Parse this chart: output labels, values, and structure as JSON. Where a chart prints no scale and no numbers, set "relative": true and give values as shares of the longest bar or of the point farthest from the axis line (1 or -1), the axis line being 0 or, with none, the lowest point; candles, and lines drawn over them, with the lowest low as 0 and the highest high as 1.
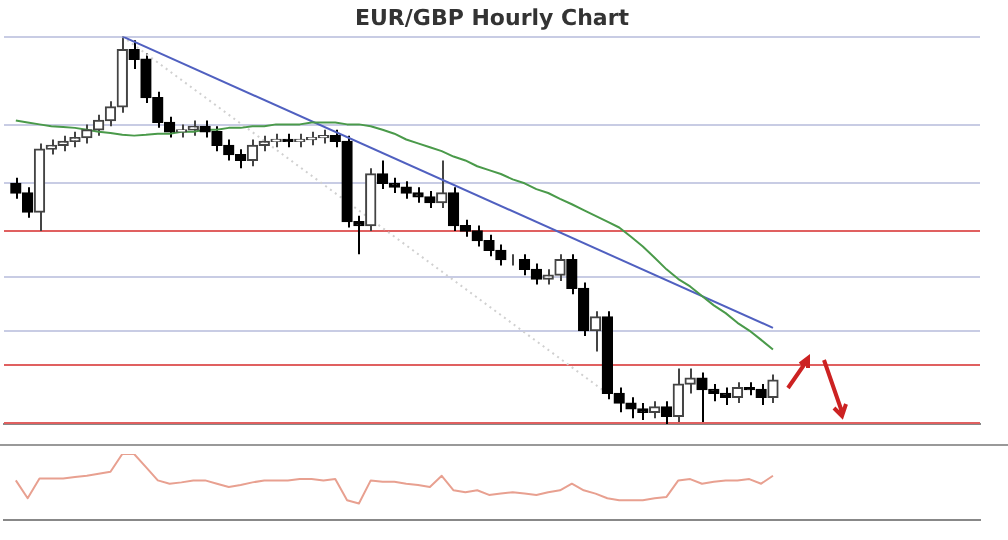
{
  "chart_data": [
    {
      "type": "candlestick",
      "title": "EUR/GBP Hourly Chart",
      "relative": true,
      "legend": false,
      "grid": false,
      "categories": [
        null,
        null,
        null,
        null,
        null,
        null,
        null,
        null,
        null,
        null,
        null,
        null,
        null,
        null,
        null,
        null,
        null,
        null,
        null,
        null,
        null,
        null,
        null,
        null,
        null,
        null,
        null,
        null,
        null,
        null,
        null,
        null,
        null,
        null,
        null,
        null,
        null,
        null,
        null,
        null,
        null,
        null,
        null,
        null,
        null,
        null,
        null,
        null,
        null,
        null,
        null,
        null,
        null,
        null,
        null,
        null,
        null,
        null,
        null,
        null,
        null,
        null,
        null,
        null,
        null
      ],
      "ohlc": [
        [
          0.621,
          0.635,
          0.581,
          0.596
        ],
        [
          0.596,
          0.611,
          0.532,
          0.547
        ],
        [
          0.547,
          0.724,
          0.498,
          0.709
        ],
        [
          0.709,
          0.734,
          0.695,
          0.719
        ],
        [
          0.719,
          0.744,
          0.704,
          0.729
        ],
        [
          0.729,
          0.754,
          0.714,
          0.739
        ],
        [
          0.739,
          0.773,
          0.724,
          0.759
        ],
        [
          0.759,
          0.798,
          0.744,
          0.783
        ],
        [
          0.783,
          0.833,
          0.768,
          0.818
        ],
        [
          0.818,
          1.0,
          0.803,
          0.966
        ],
        [
          0.966,
          0.99,
          0.916,
          0.941
        ],
        [
          0.941,
          0.956,
          0.828,
          0.842
        ],
        [
          0.842,
          0.857,
          0.764,
          0.778
        ],
        [
          0.778,
          0.793,
          0.739,
          0.754
        ],
        [
          0.754,
          0.773,
          0.739,
          0.759
        ],
        [
          0.759,
          0.783,
          0.744,
          0.768
        ],
        [
          0.768,
          0.783,
          0.739,
          0.754
        ],
        [
          0.754,
          0.768,
          0.704,
          0.719
        ],
        [
          0.719,
          0.734,
          0.68,
          0.695
        ],
        [
          0.695,
          0.709,
          0.66,
          0.68
        ],
        [
          0.68,
          0.734,
          0.665,
          0.719
        ],
        [
          0.719,
          0.744,
          0.704,
          0.729
        ],
        [
          0.729,
          0.749,
          0.714,
          0.734
        ],
        [
          0.734,
          0.749,
          0.714,
          0.729
        ],
        [
          0.729,
          0.749,
          0.714,
          0.734
        ],
        [
          0.734,
          0.754,
          0.719,
          0.739
        ],
        [
          0.739,
          0.759,
          0.724,
          0.744
        ],
        [
          0.744,
          0.759,
          0.714,
          0.729
        ],
        [
          0.729,
          0.744,
          0.507,
          0.522
        ],
        [
          0.522,
          0.537,
          0.438,
          0.512
        ],
        [
          0.512,
          0.66,
          0.498,
          0.645
        ],
        [
          0.645,
          0.68,
          0.606,
          0.621
        ],
        [
          0.621,
          0.635,
          0.596,
          0.611
        ],
        [
          0.611,
          0.626,
          0.581,
          0.596
        ],
        [
          0.596,
          0.611,
          0.571,
          0.586
        ],
        [
          0.586,
          0.601,
          0.557,
          0.571
        ],
        [
          0.571,
          0.68,
          0.557,
          0.596
        ],
        [
          0.596,
          0.611,
          0.498,
          0.512
        ],
        [
          0.512,
          0.527,
          0.483,
          0.498
        ],
        [
          0.498,
          0.512,
          0.458,
          0.473
        ],
        [
          0.473,
          0.488,
          0.433,
          0.448
        ],
        [
          0.448,
          0.463,
          0.409,
          0.424
        ],
        [
          0.424,
          0.438,
          0.409,
          0.424
        ],
        [
          0.424,
          0.438,
          0.384,
          0.399
        ],
        [
          0.399,
          0.414,
          0.36,
          0.374
        ],
        [
          0.374,
          0.399,
          0.36,
          0.384
        ],
        [
          0.384,
          0.438,
          0.369,
          0.424
        ],
        [
          0.424,
          0.438,
          0.335,
          0.35
        ],
        [
          0.35,
          0.365,
          0.227,
          0.241
        ],
        [
          0.241,
          0.291,
          0.187,
          0.276
        ],
        [
          0.276,
          0.291,
          0.064,
          0.079
        ],
        [
          0.079,
          0.094,
          0.03,
          0.054
        ],
        [
          0.054,
          0.069,
          0.015,
          0.039
        ],
        [
          0.039,
          0.054,
          0.01,
          0.03
        ],
        [
          0.03,
          0.059,
          0.015,
          0.044
        ],
        [
          0.044,
          0.059,
          0,
          0.02
        ],
        [
          0.02,
          0.143,
          0.005,
          0.103
        ],
        [
          0.103,
          0.143,
          0.079,
          0.118
        ],
        [
          0.118,
          0.133,
          0.005,
          0.089
        ],
        [
          0.089,
          0.103,
          0.059,
          0.079
        ],
        [
          0.079,
          0.094,
          0.049,
          0.069
        ],
        [
          0.069,
          0.108,
          0.054,
          0.094
        ],
        [
          0.094,
          0.108,
          0.074,
          0.089
        ],
        [
          0.089,
          0.103,
          0.049,
          0.069
        ],
        [
          0.069,
          0.128,
          0.054,
          0.113
        ]
      ],
      "series": [
        {
          "type": "line",
          "color": "#4a9a4a",
          "values": [
            0.783,
            0.778,
            0.773,
            0.768,
            0.766,
            0.764,
            0.759,
            0.754,
            0.751,
            0.746,
            0.744,
            0.746,
            0.749,
            0.749,
            0.754,
            0.754,
            0.759,
            0.759,
            0.764,
            0.764,
            0.768,
            0.768,
            0.773,
            0.773,
            0.773,
            0.778,
            0.778,
            0.778,
            0.773,
            0.773,
            0.768,
            0.759,
            0.749,
            0.734,
            0.724,
            0.714,
            0.704,
            0.69,
            0.68,
            0.665,
            0.655,
            0.645,
            0.631,
            0.621,
            0.606,
            0.596,
            0.581,
            0.567,
            0.552,
            0.537,
            0.522,
            0.507,
            0.483,
            0.458,
            0.429,
            0.399,
            0.374,
            0.355,
            0.33,
            0.306,
            0.286,
            0.261,
            0.241,
            0.217,
            0.192
          ]
        },
        {
          "type": "line",
          "color": "#5060c0",
          "values": [
            null,
            null,
            null,
            null,
            null,
            null,
            null,
            null,
            null,
            1.0,
            null,
            null,
            null,
            null,
            null,
            null,
            null,
            null,
            null,
            null,
            null,
            null,
            null,
            null,
            null,
            null,
            null,
            null,
            null,
            null,
            null,
            null,
            null,
            null,
            null,
            null,
            null,
            null,
            null,
            null,
            null,
            null,
            null,
            null,
            null,
            null,
            null,
            null,
            null,
            null,
            null,
            null,
            null,
            null,
            null,
            null,
            null,
            null,
            null,
            null,
            null,
            null,
            null,
            null,
            0.248
          ]
        },
        {
          "type": "line",
          "color": "#d0d0d0",
          "line_style": "dotted",
          "values": [
            null,
            null,
            null,
            null,
            null,
            null,
            null,
            null,
            null,
            1.0,
            null,
            null,
            null,
            null,
            null,
            null,
            null,
            null,
            null,
            null,
            null,
            null,
            null,
            null,
            null,
            null,
            null,
            null,
            null,
            null,
            null,
            null,
            null,
            null,
            null,
            null,
            null,
            null,
            null,
            null,
            null,
            null,
            null,
            null,
            null,
            null,
            null,
            null,
            null,
            null,
            0.079,
            null,
            null,
            null,
            null,
            null,
            null,
            null,
            null,
            null,
            null,
            null,
            null,
            null,
            null
          ]
        }
      ],
      "ref_lines": [
        {
          "axis": "y",
          "value": 1.0,
          "color": "#c8cce4"
        },
        {
          "axis": "y",
          "value": 0.773,
          "color": "#c8cce4"
        },
        {
          "axis": "y",
          "value": 0.626,
          "color": "#c8cce4"
        },
        {
          "axis": "y",
          "value": 0.498,
          "color": "#e06060"
        },
        {
          "axis": "y",
          "value": 0.384,
          "color": "#c8cce4"
        },
        {
          "axis": "y",
          "value": 0.241,
          "color": "#c8cce4"
        },
        {
          "axis": "y",
          "value": 0.153,
          "color": "#e06060"
        },
        {
          "axis": "y",
          "value": 0.005,
          "color": "#e06060"
        }
      ]
    },
    {
      "type": "line",
      "relative": true,
      "legend": false,
      "grid": false,
      "color": "#e8a090",
      "categories": [
        null,
        null,
        null,
        null,
        null,
        null,
        null,
        null,
        null,
        null,
        null,
        null,
        null,
        null,
        null,
        null,
        null,
        null,
        null,
        null,
        null,
        null,
        null,
        null,
        null,
        null,
        null,
        null,
        null,
        null,
        null,
        null,
        null,
        null,
        null,
        null,
        null,
        null,
        null,
        null,
        null,
        null,
        null,
        null,
        null,
        null,
        null,
        null,
        null,
        null,
        null,
        null,
        null,
        null,
        null,
        null,
        null,
        null,
        null,
        null,
        null,
        null,
        null,
        null,
        null
      ],
      "values": [
        0.6,
        0.33,
        0.63,
        0.63,
        0.63,
        0.65,
        0.67,
        0.7,
        0.73,
        1.0,
        1.0,
        0.8,
        0.6,
        0.55,
        0.57,
        0.6,
        0.6,
        0.55,
        0.5,
        0.53,
        0.57,
        0.6,
        0.6,
        0.6,
        0.62,
        0.62,
        0.6,
        0.62,
        0.3,
        0.25,
        0.6,
        0.58,
        0.58,
        0.55,
        0.53,
        0.5,
        0.67,
        0.45,
        0.42,
        0.45,
        0.38,
        0.4,
        0.42,
        0.4,
        0.38,
        0.42,
        0.45,
        0.55,
        0.45,
        0.4,
        0.33,
        0.3,
        0.3,
        0.3,
        0.33,
        0.35,
        0.6,
        0.62,
        0.55,
        0.58,
        0.6,
        0.6,
        0.62,
        0.55,
        0.67
      ]
    }
  ]
}
